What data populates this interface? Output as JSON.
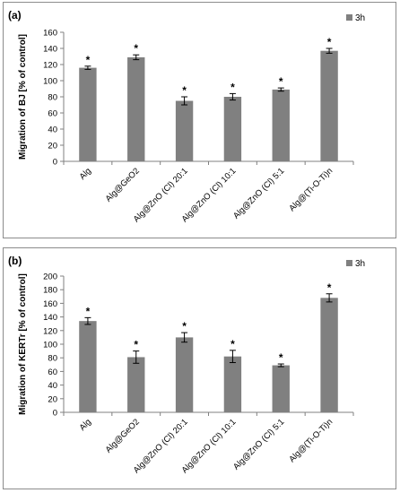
{
  "chart_data": [
    {
      "type": "bar",
      "panel_label": "(a)",
      "ylabel": "Migration of BJ [% of control]",
      "ylim": [
        0,
        160
      ],
      "ytick_step": 20,
      "yticks": [
        "0",
        "20",
        "40",
        "60",
        "80",
        "100",
        "120",
        "140",
        "160"
      ],
      "categories": [
        "Alg",
        "Alg@GeO2",
        "Alg@ZnO (Cl) 20:1",
        "Alg@ZnO (Cl) 10:1",
        "Alg@ZnO (Cl) 5:1",
        "Alg@(Ti-O-Ti)n"
      ],
      "series": [
        {
          "name": "3h",
          "values": [
            116,
            129,
            75,
            80,
            89,
            137
          ],
          "errors": [
            2,
            3,
            5,
            4,
            2,
            3
          ]
        }
      ],
      "significance": [
        "*",
        "*",
        "*",
        "*",
        "*",
        "*"
      ],
      "bar_color": "#808080",
      "legend_position": "top-right",
      "grid": false
    },
    {
      "type": "bar",
      "panel_label": "(b)",
      "ylabel": "Migration of KERTr [% of control]",
      "ylim": [
        0,
        200
      ],
      "ytick_step": 20,
      "yticks": [
        "0",
        "20",
        "40",
        "60",
        "80",
        "100",
        "120",
        "140",
        "160",
        "180",
        "200"
      ],
      "categories": [
        "Alg",
        "Alg@GeO2",
        "Alg@ZnO (Cl) 20:1",
        "Alg@ZnO (Cl) 10:1",
        "Alg@ZnO (Cl) 5:1",
        "Alg@(Ti-O-Ti)n"
      ],
      "series": [
        {
          "name": "3h",
          "values": [
            134,
            81,
            110,
            82,
            69,
            168
          ],
          "errors": [
            5,
            9,
            7,
            9,
            2,
            6
          ]
        }
      ],
      "significance": [
        "*",
        "*",
        "*",
        "*",
        "*",
        "*"
      ],
      "bar_color": "#808080",
      "legend_position": "top-right",
      "grid": false
    }
  ]
}
